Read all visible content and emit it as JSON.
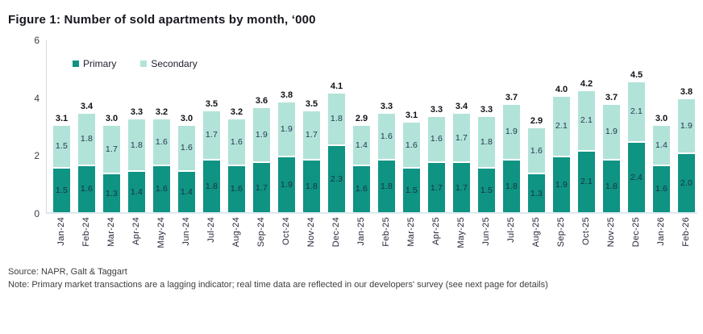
{
  "figure": {
    "title": "Figure 1: Number of sold apartments by month, ‘000",
    "source": "Source: NAPR, Galt & Taggart",
    "note": "Note: Primary market transactions are a lagging indicator; real time data are reflected in our developers' survey (see next page for details)"
  },
  "legend": {
    "primary_label": "Primary",
    "secondary_label": "Secondary"
  },
  "colors": {
    "primary": "#0f9383",
    "secondary": "#b2e3d9"
  },
  "chart_data": {
    "type": "bar",
    "stacked": true,
    "title": "Figure 1: Number of sold apartments by month, ‘000",
    "xlabel": "",
    "ylabel": "",
    "ylim": [
      0,
      6
    ],
    "yticks": [
      0,
      2,
      4,
      6
    ],
    "grid": false,
    "legend_position": "top-left-inside",
    "categories": [
      "Jan-24",
      "Feb-24",
      "Mar-24",
      "Apr-24",
      "May-24",
      "Jun-24",
      "Jul-24",
      "Aug-24",
      "Sep-24",
      "Oct-24",
      "Nov-24",
      "Dec-24",
      "Jan-25",
      "Feb-25",
      "Mar-25",
      "Apr-25",
      "May-25",
      "Jun-25",
      "Jul-25",
      "Aug-25",
      "Sep-25",
      "Oct-25",
      "Nov-25",
      "Dec-25",
      "Jan-26",
      "Feb-26"
    ],
    "series": [
      {
        "name": "Primary",
        "color": "#0f9383",
        "values": [
          1.5,
          1.6,
          1.3,
          1.4,
          1.6,
          1.4,
          1.8,
          1.6,
          1.7,
          1.9,
          1.8,
          2.3,
          1.6,
          1.8,
          1.5,
          1.7,
          1.7,
          1.5,
          1.8,
          1.3,
          1.9,
          2.1,
          1.8,
          2.4,
          1.6,
          2.0
        ]
      },
      {
        "name": "Secondary",
        "color": "#b2e3d9",
        "values": [
          1.5,
          1.8,
          1.7,
          1.8,
          1.6,
          1.6,
          1.7,
          1.6,
          1.9,
          1.9,
          1.7,
          1.8,
          1.4,
          1.6,
          1.6,
          1.6,
          1.7,
          1.8,
          1.9,
          1.6,
          2.1,
          2.1,
          1.9,
          2.1,
          1.4,
          1.9
        ]
      }
    ],
    "totals": [
      3.1,
      3.4,
      3.0,
      3.3,
      3.2,
      3.0,
      3.5,
      3.2,
      3.6,
      3.8,
      3.5,
      4.1,
      2.9,
      3.3,
      3.1,
      3.3,
      3.4,
      3.3,
      3.7,
      2.9,
      4.0,
      4.2,
      3.7,
      4.5,
      3.0,
      3.8
    ]
  }
}
